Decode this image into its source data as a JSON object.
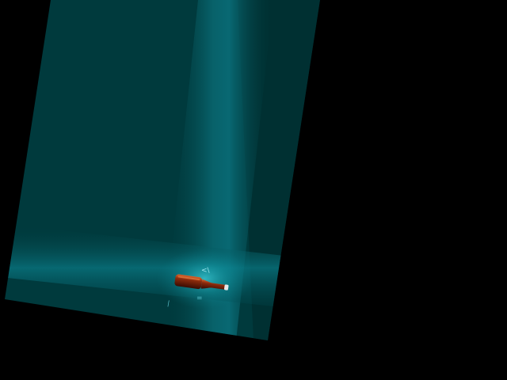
{
  "image": {
    "subject": "bottle-on-teal-surface",
    "background_color": "#000000",
    "panel_colors": {
      "dark": "#003537",
      "mid": "#00484c",
      "light": "#0a7c88"
    },
    "bottle_colors": {
      "glass": "#6e1a08",
      "highlight": "#d8632b",
      "cap": "#e8e8e8"
    }
  },
  "labels": {
    "mark_a": "<\\",
    "mark_b": "=",
    "mark_c": "—"
  }
}
